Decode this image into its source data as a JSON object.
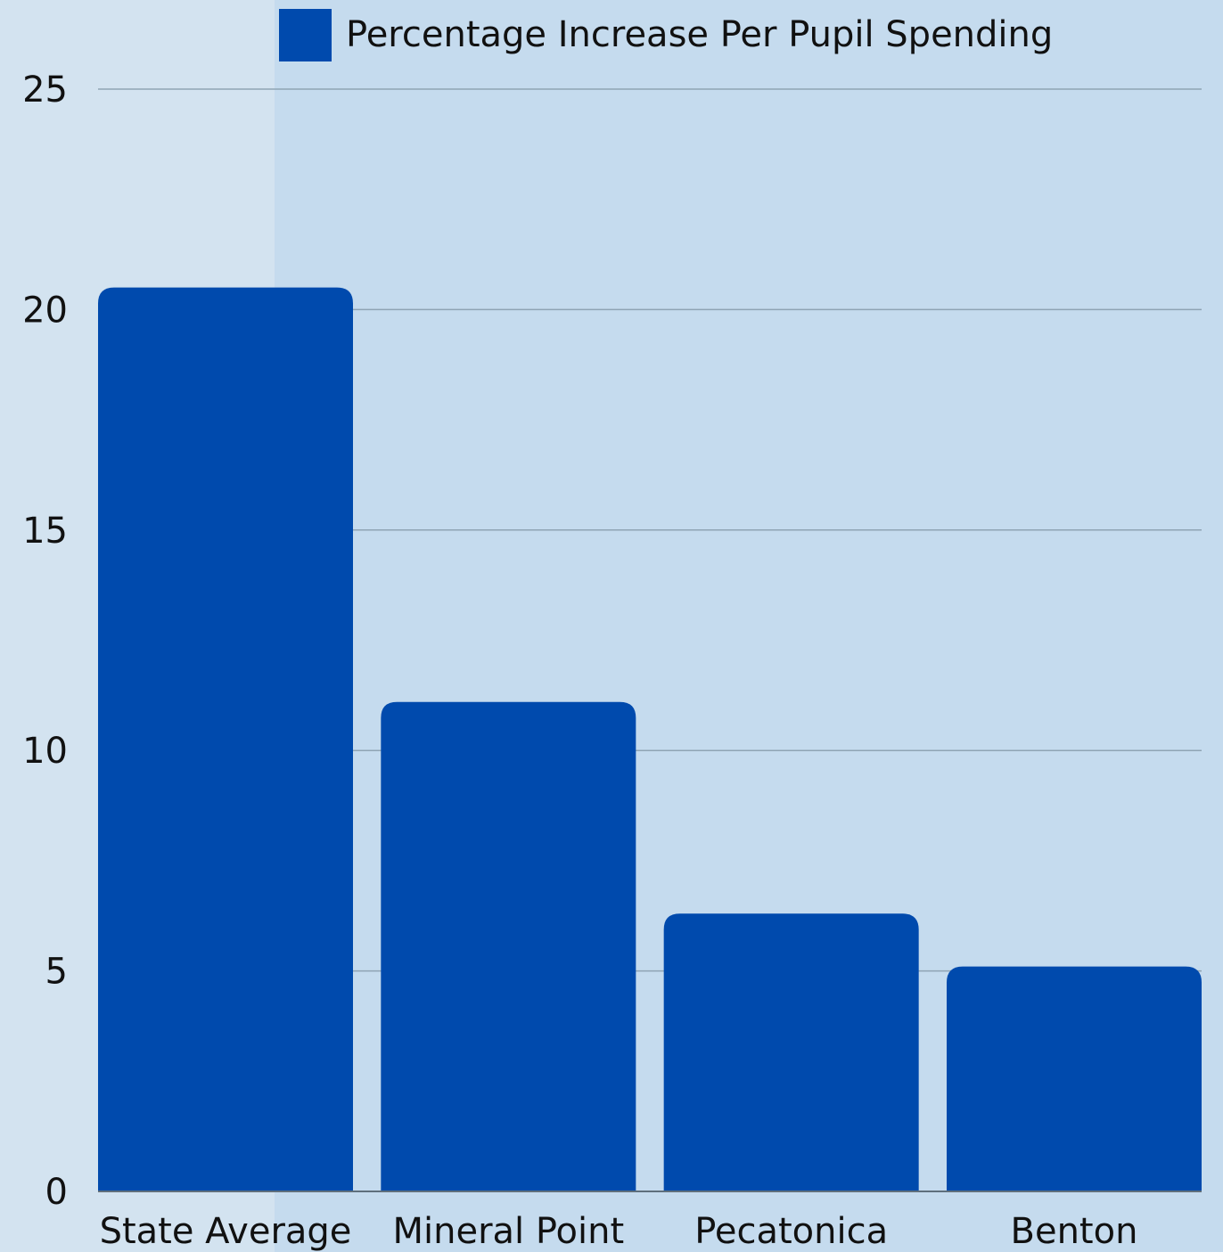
{
  "chart_data": {
    "type": "bar",
    "categories": [
      "State Average",
      "Mineral Point",
      "Pecatonica",
      "Benton"
    ],
    "series": [
      {
        "name": "Percentage Increase Per Pupil Spending",
        "values": [
          20.5,
          11.1,
          6.3,
          5.1
        ]
      }
    ],
    "ylim": [
      0,
      25
    ],
    "yticks": [
      "0",
      "5",
      "10",
      "15",
      "20",
      "25"
    ],
    "grid": true,
    "legend_position": "top",
    "colors": {
      "bar": "#004aad",
      "plot_background": "#c5dbee",
      "page_background": "#d3e3f0",
      "gridline": "#8fa4b4",
      "baseline": "#5f6f7c",
      "text": "#111111"
    }
  }
}
